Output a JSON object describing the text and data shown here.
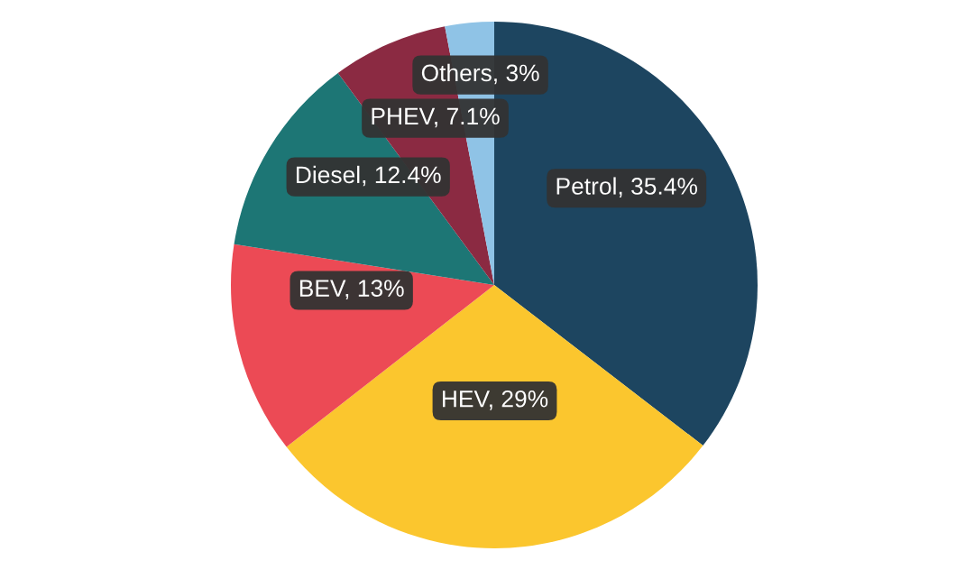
{
  "chart_data": {
    "type": "pie",
    "categories": [
      "Petrol",
      "HEV",
      "BEV",
      "Diesel",
      "PHEV",
      "Others"
    ],
    "values": [
      35.4,
      29,
      13,
      12.4,
      7.1,
      3
    ],
    "colors": [
      "#1d4560",
      "#fbc62e",
      "#ec4a55",
      "#1d7675",
      "#8b2a42",
      "#8fc3e6"
    ],
    "value_labels": [
      "35.4%",
      "29%",
      "13%",
      "12.4%",
      "7.1%",
      "3%"
    ],
    "legend": false
  }
}
